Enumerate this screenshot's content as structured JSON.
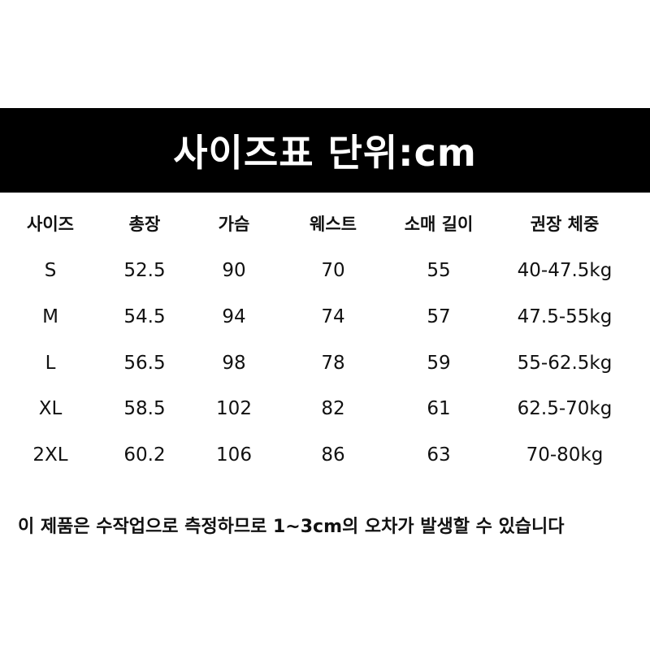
{
  "title": "사이즈표 단위:cm",
  "table": {
    "headers": [
      "사이즈",
      "총장",
      "가슴",
      "웨스트",
      "소매 길이",
      "권장 체중"
    ],
    "rows": [
      [
        "S",
        "52.5",
        "90",
        "70",
        "55",
        "40-47.5kg"
      ],
      [
        "M",
        "54.5",
        "94",
        "74",
        "57",
        "47.5-55kg"
      ],
      [
        "L",
        "56.5",
        "98",
        "78",
        "59",
        "55-62.5kg"
      ],
      [
        "XL",
        "58.5",
        "102",
        "82",
        "61",
        "62.5-70kg"
      ],
      [
        "2XL",
        "60.2",
        "106",
        "86",
        "63",
        "70-80kg"
      ]
    ]
  },
  "note": "이 제품은 수작업으로 측정하므로 1~3cm의 오차가 발생할 수 있습니다",
  "colors": {
    "banner": "#000000",
    "banner_text": "#ffffff",
    "text": "#111111"
  }
}
